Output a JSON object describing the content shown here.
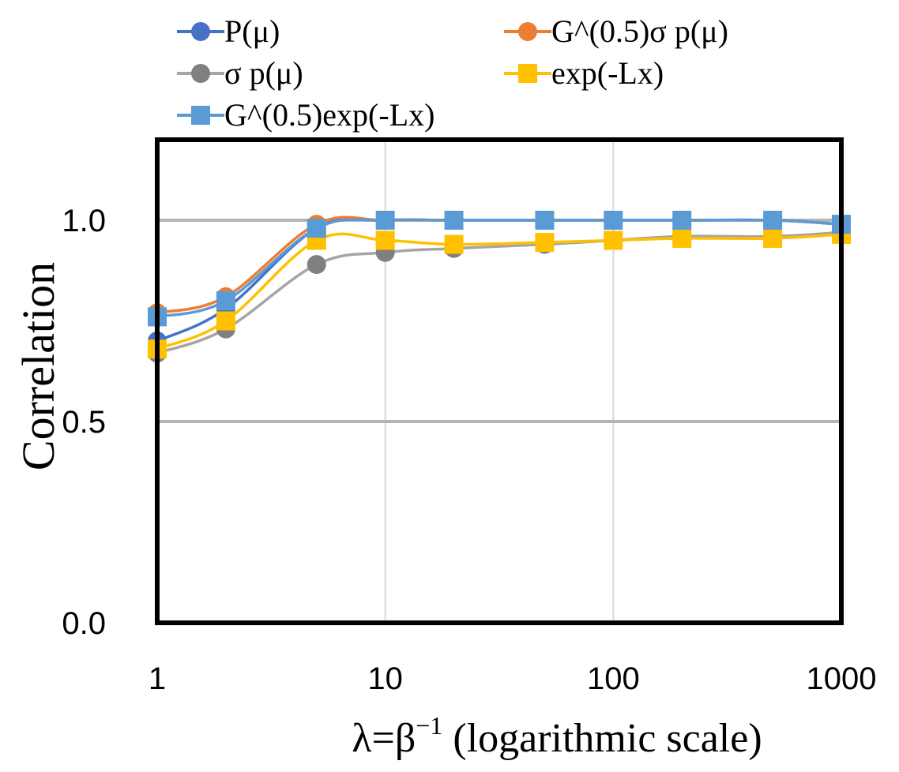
{
  "chart_data": {
    "type": "line",
    "title": "",
    "xlabel": "λ=β⁻¹ (logarithmic scale)",
    "xlabel_main": "λ=β",
    "xlabel_sup": "−1",
    "xlabel_rest": " (logarithmic scale)",
    "ylabel": "Correlation",
    "xscale": "log",
    "xlim": [
      1,
      1000
    ],
    "ylim": [
      0,
      1.2
    ],
    "xticks": [
      1,
      10,
      100,
      1000
    ],
    "xtick_labels": [
      "1",
      "10",
      "100",
      "1000"
    ],
    "yticks": [
      0,
      0.5,
      1.0
    ],
    "ytick_labels": [
      "0.0",
      "0.5",
      "1.0"
    ],
    "grid": "horizontal lines at 0.5 and 1.0, vertical lines at decades",
    "legend_position": "top",
    "x": [
      1,
      2,
      5,
      10,
      20,
      50,
      100,
      200,
      500,
      1000
    ],
    "series": [
      {
        "name": "P(μ)",
        "color": "#4472C4",
        "marker": "circle",
        "values": [
          0.7,
          0.78,
          0.98,
          1.0,
          1.0,
          1.0,
          1.0,
          1.0,
          1.0,
          0.99
        ]
      },
      {
        "name": "G^(0.5)σ p(μ)",
        "color": "#ED7D31",
        "marker": "circle",
        "values": [
          0.77,
          0.81,
          0.99,
          1.0,
          1.0,
          1.0,
          1.0,
          1.0,
          1.0,
          0.99
        ]
      },
      {
        "name": "σ p(μ)",
        "color": "#A5A5A5",
        "marker": "circle",
        "values": [
          0.67,
          0.73,
          0.89,
          0.92,
          0.93,
          0.94,
          0.95,
          0.96,
          0.96,
          0.97
        ]
      },
      {
        "name": "exp(-Lx)",
        "color": "#FFC000",
        "marker": "square",
        "values": [
          0.68,
          0.75,
          0.95,
          0.95,
          0.94,
          0.945,
          0.95,
          0.955,
          0.955,
          0.965
        ]
      },
      {
        "name": "G^(0.5)exp(-Lx)",
        "color": "#5B9BD5",
        "marker": "square",
        "values": [
          0.76,
          0.8,
          0.98,
          1.0,
          1.0,
          1.0,
          1.0,
          1.0,
          1.0,
          0.99
        ]
      }
    ]
  },
  "colors": {
    "marker_grey": "#808080",
    "grid": "#D9D9D9",
    "gridline_major": "#B4B4B4",
    "axis": "#000000"
  }
}
